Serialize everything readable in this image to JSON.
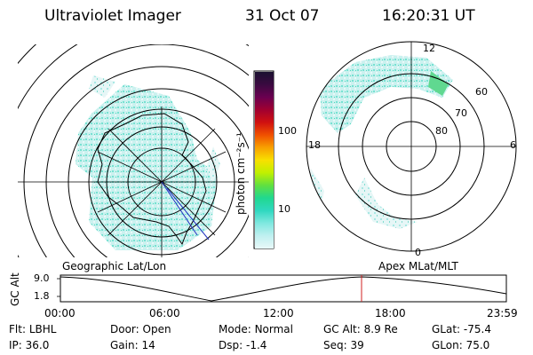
{
  "header": {
    "instrument": "Ultraviolet Imager",
    "date": "31 Oct 07",
    "time": "16:20:31 UT"
  },
  "colorbar": {
    "unit_label": "photon cm⁻²s⁻¹",
    "ticks": [
      "100",
      "10"
    ],
    "colors": [
      "#1a1030",
      "#3a0a40",
      "#6a0050",
      "#a00030",
      "#d01010",
      "#f05000",
      "#f8a000",
      "#f8e000",
      "#c0f000",
      "#60e040",
      "#20d890",
      "#30d8c0",
      "#80e8e0",
      "#c0f0f0",
      "#e8f8f8"
    ]
  },
  "left_map": {
    "caption": "Geographic Lat/Lon"
  },
  "right_map": {
    "caption": "Apex MLat/MLT",
    "mlt_labels": {
      "top": "12",
      "left": "18",
      "right": "6",
      "bottom": "0"
    },
    "lat_labels": [
      "60",
      "70",
      "80"
    ]
  },
  "altitude_plot": {
    "ylabel": "GC Alt",
    "y_ticks": [
      "9.0",
      "1.8"
    ],
    "x_ticks": [
      "00:00",
      "06:00",
      "12:00",
      "18:00",
      "23:59"
    ],
    "marker_time": "16:20"
  },
  "status": {
    "row1": [
      {
        "label": "Flt:",
        "value": "LBHL"
      },
      {
        "label": "Door:",
        "value": "Open"
      },
      {
        "label": "Mode:",
        "value": "Normal"
      },
      {
        "label": "GC Alt:",
        "value": "8.9 Re"
      },
      {
        "label": "GLat:",
        "value": "-75.4"
      }
    ],
    "row2": [
      {
        "label": "IP:",
        "value": "36.0"
      },
      {
        "label": "Gain:",
        "value": "14"
      },
      {
        "label": "Dsp:",
        "value": "-1.4"
      },
      {
        "label": "Seq:",
        "value": "39"
      },
      {
        "label": "GLon:",
        "value": "75.0"
      }
    ]
  }
}
